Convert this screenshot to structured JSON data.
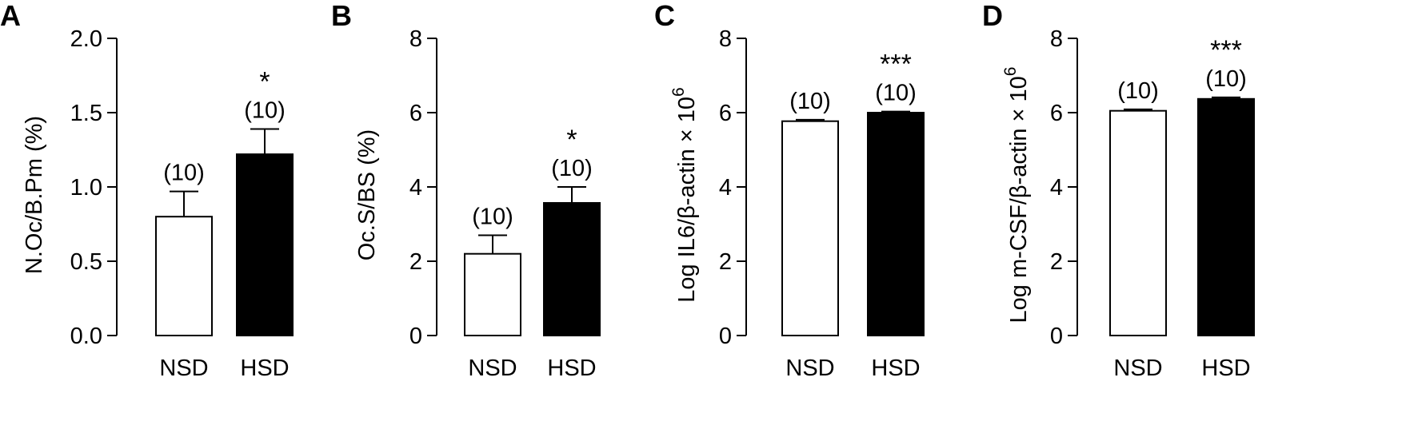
{
  "chart_data": [
    {
      "type": "bar",
      "panel": "A",
      "categories": [
        "NSD",
        "HSD"
      ],
      "values": [
        0.8,
        1.22
      ],
      "errors": [
        0.17,
        0.17
      ],
      "n_labels": [
        "(10)",
        "(10)"
      ],
      "significance": [
        "",
        "*"
      ],
      "fills": [
        "#ffffff",
        "#000000"
      ],
      "ylabel": "N.Oc/B.Pm (%)",
      "ylim": [
        0,
        2.0
      ],
      "yticks": [
        "0.0",
        "0.5",
        "1.0",
        "1.5",
        "2.0"
      ],
      "yticks_values": [
        0,
        0.5,
        1.0,
        1.5,
        2.0
      ]
    },
    {
      "type": "bar",
      "panel": "B",
      "categories": [
        "NSD",
        "HSD"
      ],
      "values": [
        2.2,
        3.57
      ],
      "errors": [
        0.5,
        0.43
      ],
      "n_labels": [
        "(10)",
        "(10)"
      ],
      "significance": [
        "",
        "*"
      ],
      "fills": [
        "#ffffff",
        "#000000"
      ],
      "ylabel": "Oc.S/BS (%)",
      "ylim": [
        0,
        8
      ],
      "yticks": [
        "0",
        "2",
        "4",
        "6",
        "8"
      ],
      "yticks_values": [
        0,
        2,
        4,
        6,
        8
      ]
    },
    {
      "type": "bar",
      "panel": "C",
      "categories": [
        "NSD",
        "HSD"
      ],
      "values": [
        5.77,
        6.0
      ],
      "errors": [
        0.04,
        0.03
      ],
      "n_labels": [
        "(10)",
        "(10)"
      ],
      "significance": [
        "",
        "***"
      ],
      "fills": [
        "#ffffff",
        "#000000"
      ],
      "ylabel": "Log IL6/β-actin × 10",
      "ylabel_sup": "6",
      "ylim": [
        0,
        8
      ],
      "yticks": [
        "0",
        "2",
        "4",
        "6",
        "8"
      ],
      "yticks_values": [
        0,
        2,
        4,
        6,
        8
      ]
    },
    {
      "type": "bar",
      "panel": "D",
      "categories": [
        "NSD",
        "HSD"
      ],
      "values": [
        6.05,
        6.37
      ],
      "errors": [
        0.04,
        0.04
      ],
      "n_labels": [
        "(10)",
        "(10)"
      ],
      "significance": [
        "",
        "***"
      ],
      "fills": [
        "#ffffff",
        "#000000"
      ],
      "ylabel": "Log m-CSF/β-actin × 10",
      "ylabel_sup": "6",
      "ylim": [
        0,
        8
      ],
      "yticks": [
        "0",
        "2",
        "4",
        "6",
        "8"
      ],
      "yticks_values": [
        0,
        2,
        4,
        6,
        8
      ]
    }
  ]
}
